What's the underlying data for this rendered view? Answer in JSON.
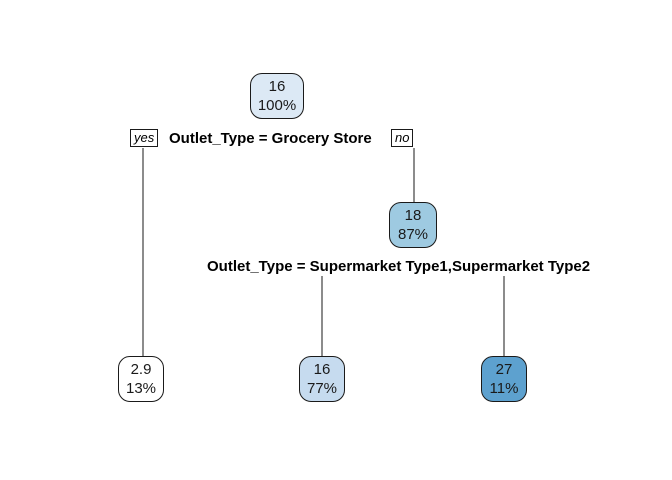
{
  "tree": {
    "root": {
      "value": "16",
      "percent": "100%",
      "fill": "#dce9f5"
    },
    "split1": {
      "label": "Outlet_Type = Grocery Store",
      "yes": "yes",
      "no": "no"
    },
    "leaf_grocery": {
      "value": "2.9",
      "percent": "13%",
      "fill": "#ffffff"
    },
    "node_other": {
      "value": "18",
      "percent": "87%",
      "fill": "#9ecae1"
    },
    "split2": {
      "label": "Outlet_Type = Supermarket Type1,Supermarket Type2"
    },
    "leaf_super": {
      "value": "16",
      "percent": "77%",
      "fill": "#c6dbef"
    },
    "leaf_other": {
      "value": "27",
      "percent": "11%",
      "fill": "#5da1cf"
    }
  },
  "colors": {
    "line": "#1a1a1a"
  }
}
